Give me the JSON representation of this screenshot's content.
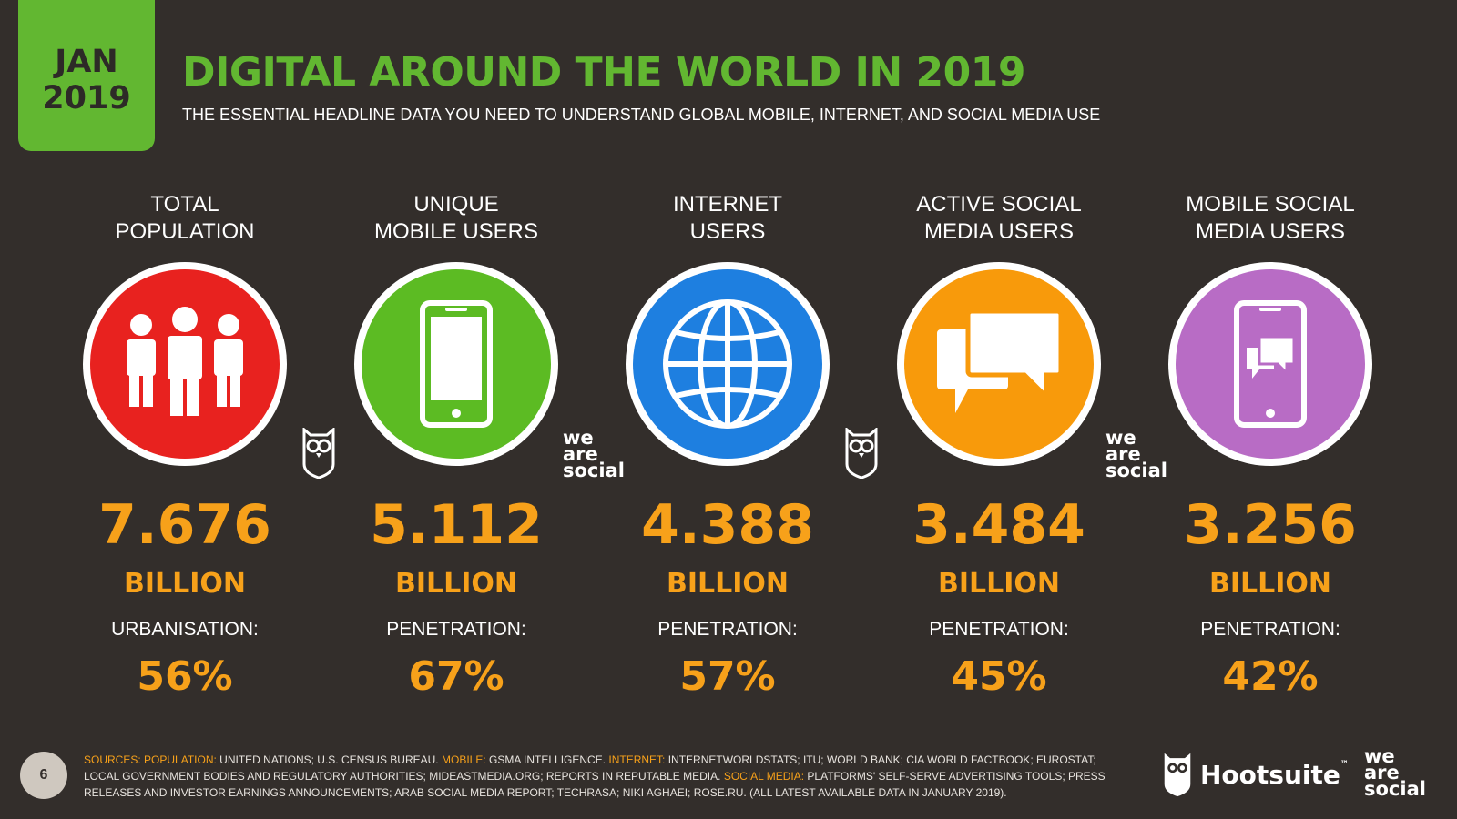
{
  "date_tab": {
    "month": "JAN",
    "year": "2019"
  },
  "header": {
    "title": "DIGITAL AROUND THE WORLD IN 2019",
    "subtitle": "THE ESSENTIAL HEADLINE DATA YOU NEED TO UNDERSTAND GLOBAL MOBILE, INTERNET, AND SOCIAL MEDIA USE"
  },
  "stats": [
    {
      "label_line1": "TOTAL",
      "label_line2": "POPULATION",
      "value": "7.676",
      "unit": "BILLION",
      "metric_label": "URBANISATION:",
      "metric_value": "56%",
      "color": "#e8221f",
      "icon": "people-icon"
    },
    {
      "label_line1": "UNIQUE",
      "label_line2": "MOBILE USERS",
      "value": "5.112",
      "unit": "BILLION",
      "metric_label": "PENETRATION:",
      "metric_value": "67%",
      "color": "#5cbb23",
      "icon": "mobile-phone-icon"
    },
    {
      "label_line1": "INTERNET",
      "label_line2": "USERS",
      "value": "4.388",
      "unit": "BILLION",
      "metric_label": "PENETRATION:",
      "metric_value": "57%",
      "color": "#1e7fe0",
      "icon": "globe-icon"
    },
    {
      "label_line1": "ACTIVE SOCIAL",
      "label_line2": "MEDIA USERS",
      "value": "3.484",
      "unit": "BILLION",
      "metric_label": "PENETRATION:",
      "metric_value": "45%",
      "color": "#f89a0b",
      "icon": "chat-bubbles-icon"
    },
    {
      "label_line1": "MOBILE SOCIAL",
      "label_line2": "MEDIA USERS",
      "value": "3.256",
      "unit": "BILLION",
      "metric_label": "PENETRATION:",
      "metric_value": "42%",
      "color": "#b86cc5",
      "icon": "mobile-chat-icon"
    }
  ],
  "badges": {
    "we": "we",
    "are": "are",
    "social": "social"
  },
  "footer": {
    "page_number": "6",
    "sources": [
      {
        "text": "SOURCES:",
        "highlight": true
      },
      {
        "text": " ",
        "highlight": false
      },
      {
        "text": "POPULATION:",
        "highlight": true
      },
      {
        "text": " UNITED NATIONS; U.S. CENSUS BUREAU. ",
        "highlight": false
      },
      {
        "text": "MOBILE:",
        "highlight": true
      },
      {
        "text": " GSMA INTELLIGENCE. ",
        "highlight": false
      },
      {
        "text": "INTERNET:",
        "highlight": true
      },
      {
        "text": " INTERNETWORLDSTATS; ITU; WORLD BANK; CIA WORLD FACTBOOK; EUROSTAT; LOCAL GOVERNMENT BODIES AND REGULATORY AUTHORITIES; MIDEASTMEDIA.ORG; REPORTS IN REPUTABLE MEDIA. ",
        "highlight": false
      },
      {
        "text": "SOCIAL MEDIA:",
        "highlight": true
      },
      {
        "text": " PLATFORMS' SELF-SERVE ADVERTISING TOOLS; PRESS RELEASES AND INVESTOR EARNINGS ANNOUNCEMENTS; ARAB SOCIAL MEDIA REPORT; TECHRASA; NIKI AGHAEI; ROSE.RU. (ALL LATEST AVAILABLE DATA IN JANUARY 2019).",
        "highlight": false
      }
    ],
    "hootsuite": "Hootsuite",
    "trademark": "™"
  },
  "colors": {
    "accent_green": "#62b731",
    "value_orange": "#f7a11a",
    "background": "#332e2b"
  }
}
